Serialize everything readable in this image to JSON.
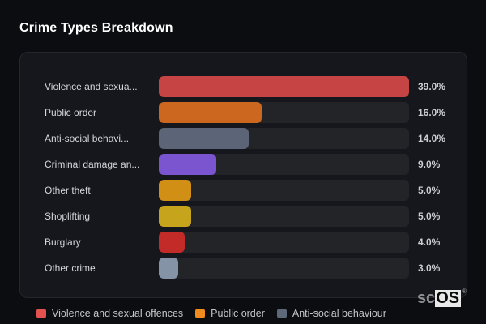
{
  "page": {
    "title": "Crime Types Breakdown",
    "background": "#0c0d10",
    "panel_background": "#16171c",
    "track_color": "#232428"
  },
  "chart_data": {
    "type": "bar",
    "orientation": "horizontal",
    "title": "Crime Types Breakdown",
    "categories": [
      "Violence and sexua...",
      "Public order",
      "Anti-social behavi...",
      "Criminal damage an...",
      "Other theft",
      "Shoplifting",
      "Burglary",
      "Other crime"
    ],
    "values": [
      39.0,
      16.0,
      14.0,
      9.0,
      5.0,
      5.0,
      4.0,
      3.0
    ],
    "value_labels": [
      "39.0%",
      "16.0%",
      "14.0%",
      "9.0%",
      "5.0%",
      "5.0%",
      "4.0%",
      "3.0%"
    ],
    "bar_colors": [
      "#c74444",
      "#cc671f",
      "#5b6577",
      "#7b55cf",
      "#d18f15",
      "#c6a41b",
      "#c32b29",
      "#8593a7"
    ],
    "max_value": 39.0,
    "xlabel": "",
    "ylabel": "",
    "grid": false,
    "legend_position": "bottom",
    "legend": [
      {
        "label": "Violence and sexual offences",
        "color": "#e4524f"
      },
      {
        "label": "Public order",
        "color": "#f08c1d"
      },
      {
        "label": "Anti-social behaviour",
        "color": "#5d6879"
      }
    ]
  },
  "watermark": {
    "prefix": "sc",
    "suffix": "OS",
    "registered": "®"
  }
}
